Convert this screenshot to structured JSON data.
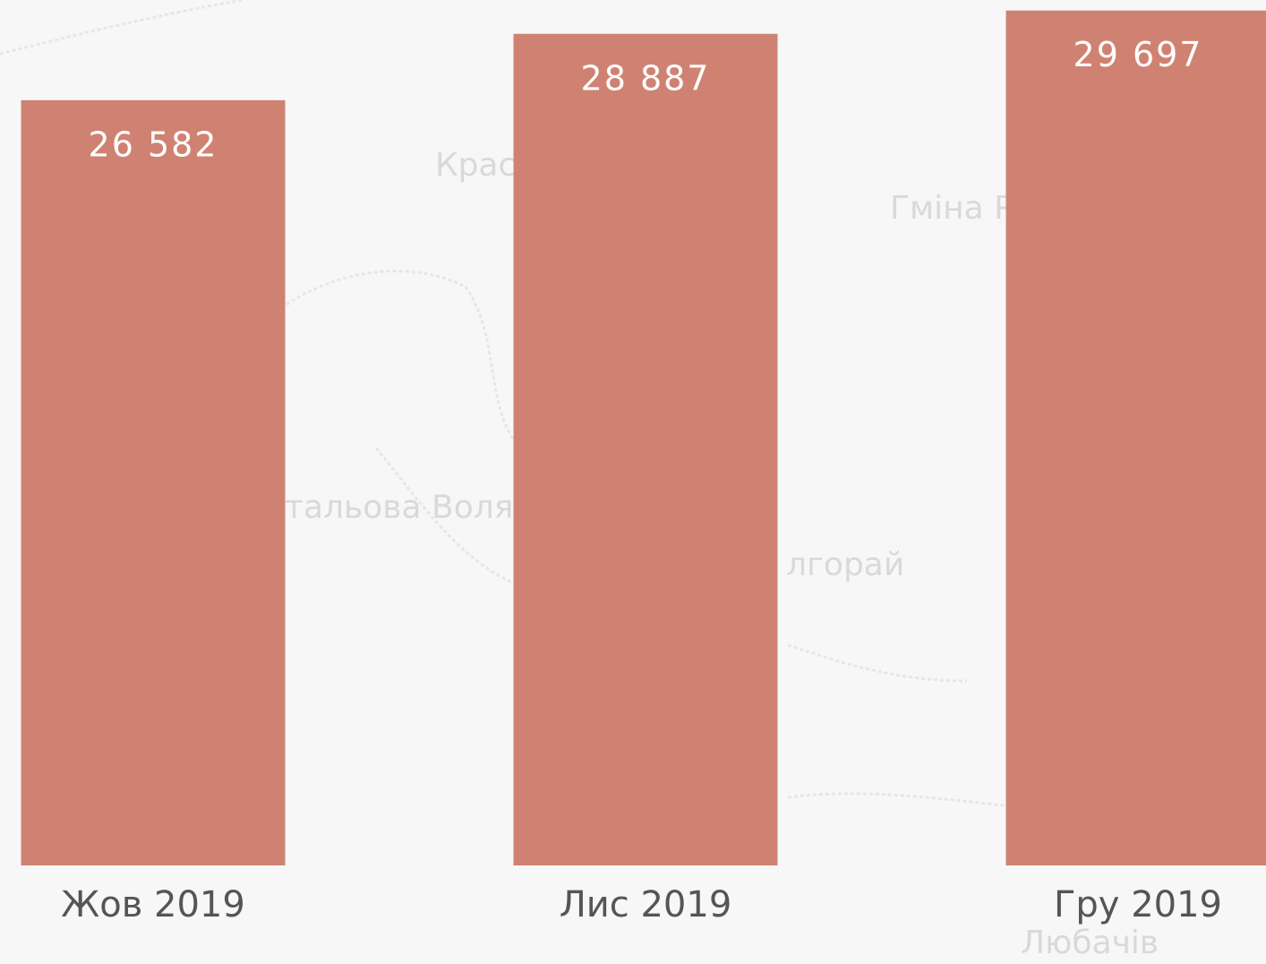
{
  "chart_data": {
    "type": "bar",
    "categories": [
      "Жов 2019",
      "Лис 2019",
      "Гру 2019"
    ],
    "values": [
      26582,
      28887,
      29697
    ],
    "value_labels": [
      "26 582",
      "28 887",
      "29 697"
    ],
    "color": "#d08272",
    "ylim": [
      0,
      30000
    ]
  },
  "map_labels": [
    "Крас",
    "Гміна Р",
    "тальова Воля",
    "лгорай",
    "Любачів"
  ]
}
